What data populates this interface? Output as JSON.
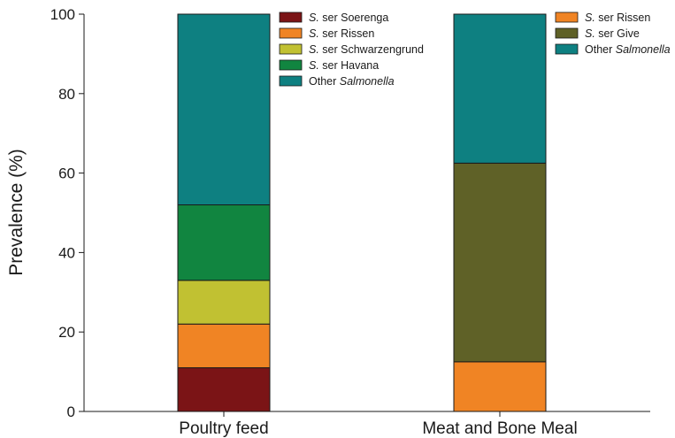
{
  "chart_data": {
    "type": "bar",
    "stacked": true,
    "ylabel": "Prevalence (%)",
    "ylim": [
      0,
      100
    ],
    "yticks": [
      "0",
      "20",
      "40",
      "60",
      "80",
      "100"
    ],
    "grid": false,
    "categories": [
      "Poultry feed",
      "Meat and Bone Meal"
    ],
    "bars": [
      {
        "category": "Poultry feed",
        "segments": [
          {
            "species": "S.",
            "name": " ser Soerenga",
            "value": 11,
            "color": "#7b1416"
          },
          {
            "species": "S.",
            "name": " ser Rissen",
            "value": 11,
            "color": "#f08424"
          },
          {
            "species": "S.",
            "name": " ser Schwarzengrund",
            "value": 11,
            "color": "#c1c132"
          },
          {
            "species": "S.",
            "name": " ser Havana",
            "value": 19,
            "color": "#118540"
          },
          {
            "species": "",
            "name": "Other ",
            "italic_suffix": "Salmonella",
            "value": 48,
            "color": "#0e8081"
          }
        ]
      },
      {
        "category": "Meat and Bone Meal",
        "segments": [
          {
            "species": "S.",
            "name": " ser Rissen",
            "value": 12.5,
            "color": "#f08424"
          },
          {
            "species": "S.",
            "name": " ser Give",
            "value": 50,
            "color": "#5f6127"
          },
          {
            "species": "",
            "name": "Other ",
            "italic_suffix": "Salmonella",
            "value": 37.5,
            "color": "#0e8081"
          }
        ]
      }
    ]
  }
}
